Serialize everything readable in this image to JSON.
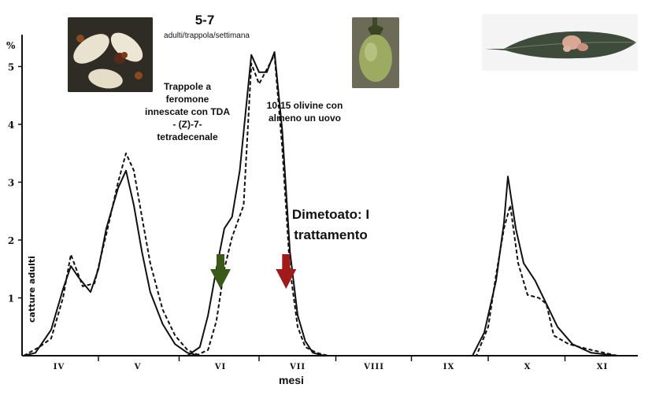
{
  "chart_data": {
    "type": "line",
    "ylabel": "catture adulti",
    "y_unit": "%",
    "xlabel": "mesi",
    "ylim": [
      0,
      5.5
    ],
    "y_ticks": [
      1,
      2,
      3,
      4,
      5
    ],
    "months": [
      "IV",
      "V",
      "VI",
      "VII",
      "VIII",
      "IX",
      "X",
      "XI"
    ],
    "series": [
      {
        "style": "solid",
        "points": [
          [
            3.55,
            0
          ],
          [
            3.7,
            0.05
          ],
          [
            3.9,
            0.45
          ],
          [
            4.05,
            1.15
          ],
          [
            4.15,
            1.55
          ],
          [
            4.25,
            1.35
          ],
          [
            4.4,
            1.1
          ],
          [
            4.5,
            1.5
          ],
          [
            4.6,
            2.2
          ],
          [
            4.75,
            2.9
          ],
          [
            4.85,
            3.2
          ],
          [
            4.95,
            2.6
          ],
          [
            5.05,
            1.8
          ],
          [
            5.15,
            1.1
          ],
          [
            5.3,
            0.55
          ],
          [
            5.45,
            0.2
          ],
          [
            5.6,
            0.05
          ],
          [
            5.75,
            0
          ],
          [
            5.6,
            0
          ],
          [
            5.75,
            0.15
          ],
          [
            5.85,
            0.7
          ],
          [
            5.95,
            1.5
          ],
          [
            6.05,
            2.2
          ],
          [
            6.15,
            2.4
          ],
          [
            6.25,
            3.2
          ],
          [
            6.4,
            5.2
          ],
          [
            6.5,
            4.9
          ],
          [
            6.6,
            4.9
          ],
          [
            6.7,
            5.25
          ],
          [
            6.8,
            3.9
          ],
          [
            6.9,
            1.8
          ],
          [
            7.0,
            0.7
          ],
          [
            7.1,
            0.25
          ],
          [
            7.2,
            0.05
          ],
          [
            7.35,
            0
          ],
          [
            9.3,
            0
          ],
          [
            9.45,
            0.4
          ],
          [
            9.6,
            1.3
          ],
          [
            9.7,
            2.3
          ],
          [
            9.75,
            3.1
          ],
          [
            9.85,
            2.2
          ],
          [
            9.95,
            1.6
          ],
          [
            10.1,
            1.3
          ],
          [
            10.25,
            0.9
          ],
          [
            10.4,
            0.5
          ],
          [
            10.6,
            0.2
          ],
          [
            10.85,
            0.05
          ],
          [
            11.2,
            0
          ]
        ]
      },
      {
        "style": "dashed",
        "points": [
          [
            3.55,
            0
          ],
          [
            3.75,
            0.15
          ],
          [
            3.9,
            0.3
          ],
          [
            4.05,
            1.0
          ],
          [
            4.15,
            1.75
          ],
          [
            4.3,
            1.2
          ],
          [
            4.45,
            1.25
          ],
          [
            4.6,
            2.1
          ],
          [
            4.75,
            3.0
          ],
          [
            4.85,
            3.5
          ],
          [
            4.95,
            3.2
          ],
          [
            5.05,
            2.4
          ],
          [
            5.15,
            1.6
          ],
          [
            5.3,
            0.8
          ],
          [
            5.45,
            0.35
          ],
          [
            5.6,
            0.1
          ],
          [
            5.75,
            0
          ],
          [
            5.7,
            0
          ],
          [
            5.85,
            0.1
          ],
          [
            5.95,
            0.6
          ],
          [
            6.05,
            1.5
          ],
          [
            6.15,
            2.05
          ],
          [
            6.3,
            2.6
          ],
          [
            6.4,
            5.05
          ],
          [
            6.5,
            4.7
          ],
          [
            6.6,
            4.95
          ],
          [
            6.7,
            5.2
          ],
          [
            6.8,
            3.6
          ],
          [
            6.9,
            1.5
          ],
          [
            7.0,
            0.5
          ],
          [
            7.1,
            0.15
          ],
          [
            7.25,
            0.05
          ],
          [
            7.4,
            0
          ],
          [
            9.35,
            0
          ],
          [
            9.5,
            0.5
          ],
          [
            9.6,
            1.4
          ],
          [
            9.7,
            2.2
          ],
          [
            9.78,
            2.6
          ],
          [
            9.88,
            1.6
          ],
          [
            10.0,
            1.05
          ],
          [
            10.15,
            1.0
          ],
          [
            10.25,
            0.9
          ],
          [
            10.35,
            0.35
          ],
          [
            10.55,
            0.2
          ],
          [
            10.85,
            0.1
          ],
          [
            11.2,
            0
          ]
        ]
      }
    ],
    "arrows": [
      {
        "x": 6.0,
        "color": "#3a5a1a"
      },
      {
        "x": 6.85,
        "color": "#a01a1a"
      }
    ],
    "colors": {
      "line": "#111111",
      "axis": "#111111"
    }
  },
  "annotations": {
    "rate_value": "5-7",
    "rate_unit": "adulti/trappola/settimana",
    "traps": "Trappole a feromone innescate con TDA - (Z)-7-tetradecenale",
    "olives": "10-15 olivine con almeno un uovo",
    "treatment": "Dimetoato: I trattamento"
  }
}
